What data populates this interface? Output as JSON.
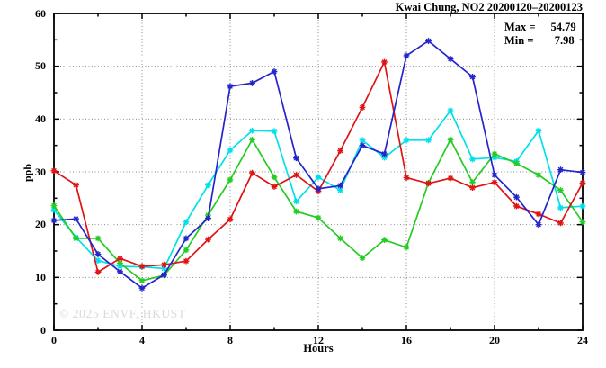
{
  "title": "Kwai Chung, NO2 20200120–20200123",
  "stats": {
    "max_label": "Max = ",
    "max_value": "54.79",
    "min_label": "Min = ",
    "min_value": "7.98"
  },
  "watermark": "© 2025 ENVF, HKUST",
  "colors": {
    "axis": "#000000",
    "grid": "#8a8a8a",
    "watermark_text": "#dadada",
    "background": "#ffffff"
  },
  "chart_data": {
    "type": "line",
    "title": "Kwai Chung, NO2 20200120–20200123",
    "xlabel": "Hours",
    "ylabel": "ppb",
    "xlim": [
      0,
      24
    ],
    "ylim": [
      0,
      60
    ],
    "x_major_ticks": [
      0,
      4,
      8,
      12,
      16,
      20,
      24
    ],
    "x_minor_ticks": [
      2,
      6,
      10,
      14,
      18,
      22
    ],
    "y_major_ticks": [
      0,
      10,
      20,
      30,
      40,
      50,
      60
    ],
    "y_minor_ticks": [
      5,
      15,
      25,
      35,
      45,
      55
    ],
    "grid": "dotted-at-major-ticks",
    "legend_position": "none",
    "marker": "asterisk",
    "annotations": {
      "max": 54.79,
      "min": 7.98
    },
    "x": [
      0,
      1,
      2,
      3,
      4,
      5,
      6,
      7,
      8,
      9,
      10,
      11,
      12,
      13,
      14,
      15,
      16,
      17,
      18,
      19,
      20,
      21,
      22,
      23,
      24
    ],
    "series": [
      {
        "name": "cyan-line",
        "color": "#00e0ea",
        "values": [
          22.8,
          17.6,
          13.2,
          12.1,
          12.0,
          11.7,
          20.5,
          27.5,
          34.1,
          37.8,
          37.7,
          24.4,
          29.0,
          26.5,
          36.0,
          32.7,
          36.0,
          36.0,
          41.6,
          32.4,
          32.7,
          32.0,
          37.8,
          23.2,
          23.5
        ]
      },
      {
        "name": "green-line",
        "color": "#24cc24",
        "values": [
          23.6,
          17.4,
          17.4,
          12.7,
          9.4,
          10.4,
          15.2,
          21.8,
          28.5,
          36.1,
          29.0,
          22.5,
          21.3,
          17.4,
          13.7,
          17.1,
          15.7,
          27.9,
          36.1,
          28.0,
          33.4,
          31.6,
          29.4,
          26.5,
          20.5
        ]
      },
      {
        "name": "red-line",
        "color": "#e01212",
        "values": [
          30.2,
          27.5,
          11.0,
          13.6,
          12.1,
          12.4,
          13.1,
          17.2,
          21.0,
          29.8,
          27.2,
          29.4,
          26.3,
          34.0,
          42.2,
          50.8,
          28.9,
          27.8,
          28.8,
          27.0,
          28.0,
          23.5,
          22.0,
          20.3,
          27.9
        ]
      },
      {
        "name": "blue-line",
        "color": "#2424cc",
        "values": [
          20.8,
          21.1,
          14.4,
          11.1,
          7.98,
          10.5,
          17.4,
          21.2,
          46.2,
          46.8,
          49.0,
          32.6,
          26.8,
          27.4,
          35.0,
          33.4,
          52.0,
          54.79,
          51.4,
          48.0,
          29.4,
          25.2,
          20.0,
          30.4,
          29.9
        ]
      }
    ]
  }
}
